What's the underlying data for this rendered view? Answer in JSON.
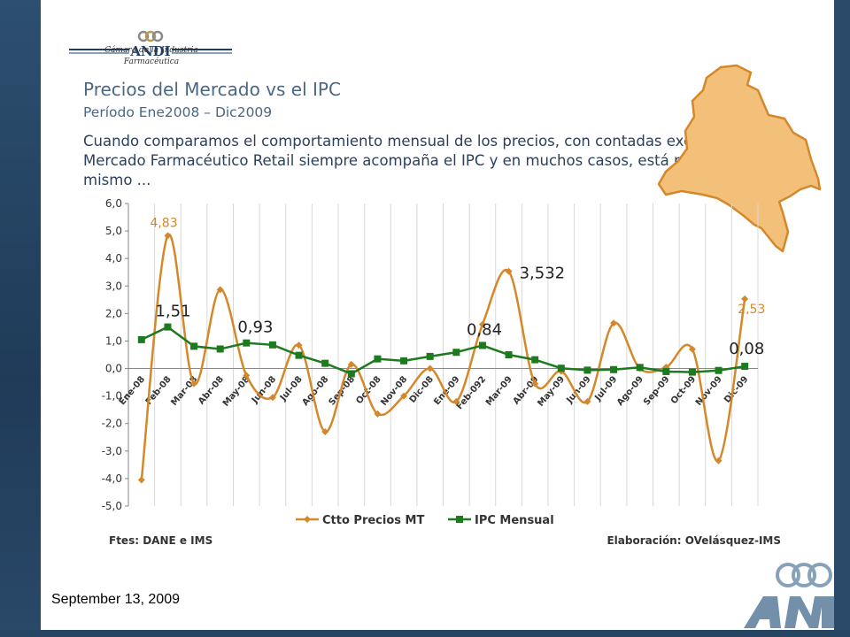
{
  "logo": {
    "brand": "ANDI",
    "subtitle_1": "Cámara de la Industria",
    "subtitle_2": "Farmacéutica"
  },
  "slide": {
    "title": "Precios del Mercado vs el IPC",
    "subtitle": "Período Ene2008 – Dic2009",
    "body": "Cuando comparamos el comportamiento mensual de los precios, con contadas excepciones, el Mercado Farmacéutico Retail siempre acompaña el IPC y en muchos casos, está por debajo del mismo ...",
    "date": "September 13, 2009"
  },
  "colors": {
    "series_prices": "#d4882a",
    "series_ipc": "#1e7a1e",
    "map_fill": "#f3c07a",
    "map_stroke": "#d4882a",
    "title": "#4a6785"
  },
  "chart_data": {
    "type": "line",
    "categories": [
      "Ene-08",
      "Feb-08",
      "Mar-08",
      "Abr-08",
      "May-08",
      "Jun-08",
      "Jul-08",
      "Ago-08",
      "Sep-08",
      "Oct-08",
      "Nov-08",
      "Dic-08",
      "Ene-09",
      "Feb-092",
      "Mar-09",
      "Abr-09",
      "May-09",
      "Jun-09",
      "Jul-09",
      "Ago-09",
      "Sep-09",
      "Oct-09",
      "Nov-09",
      "Dic-09"
    ],
    "series": [
      {
        "name": "Ctto Precios MT",
        "color": "#d4882a",
        "marker": "diamond",
        "values": [
          -4.05,
          4.83,
          -0.55,
          2.87,
          -0.25,
          -1.05,
          0.85,
          -2.3,
          0.15,
          -1.65,
          -1.0,
          0.0,
          -1.2,
          1.6,
          3.532,
          -0.55,
          -0.1,
          -1.2,
          1.65,
          0.0,
          0.05,
          0.7,
          -3.35,
          2.53
        ]
      },
      {
        "name": "IPC Mensual",
        "color": "#1e7a1e",
        "marker": "square",
        "values": [
          1.05,
          1.51,
          0.81,
          0.71,
          0.93,
          0.86,
          0.48,
          0.19,
          -0.19,
          0.35,
          0.28,
          0.44,
          0.59,
          0.84,
          0.5,
          0.32,
          0.01,
          -0.06,
          -0.04,
          0.04,
          -0.11,
          -0.13,
          -0.07,
          0.08
        ]
      }
    ],
    "annotations": [
      {
        "text": "4,83",
        "series": 0,
        "index": 1
      },
      {
        "text": "1,51",
        "series": 1,
        "index": 1
      },
      {
        "text": "0,93",
        "series": 1,
        "index": 4
      },
      {
        "text": "0,84",
        "series": 1,
        "index": 13
      },
      {
        "text": "3,532",
        "series": 0,
        "index": 14
      },
      {
        "text": "2,53",
        "series": 0,
        "index": 23
      },
      {
        "text": "0,08",
        "series": 1,
        "index": 23
      }
    ],
    "yticks": [
      "6,0",
      "5,0",
      "4,0",
      "3,0",
      "2,0",
      "1,0",
      "0,0",
      "-1,0",
      "-2,0",
      "-3,0",
      "-4,0",
      "-5,0"
    ],
    "ylim": [
      -5,
      6
    ],
    "grid": "vertical",
    "legend": "bottom",
    "footer_left": "Ftes: DANE e IMS",
    "footer_right": "Elaboración: OVelásquez-IMS"
  }
}
